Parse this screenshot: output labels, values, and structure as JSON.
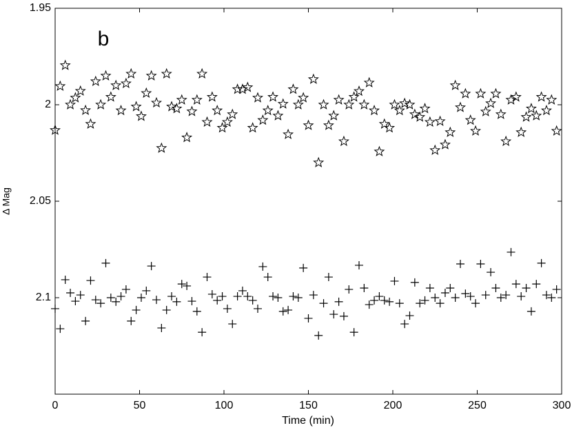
{
  "chart_data": {
    "type": "scatter",
    "annotation": "b",
    "xlabel": "Time (min)",
    "ylabel": "Δ Mag",
    "xlim": [
      0,
      300
    ],
    "xticks": [
      0,
      50,
      100,
      150,
      200,
      250,
      300
    ],
    "ylim": [
      1.95,
      2.15
    ],
    "yticks": [
      1.95,
      2,
      2.05,
      2.1
    ],
    "yinverted": true,
    "x": [
      0,
      3,
      6,
      9,
      12,
      15,
      18,
      21,
      24,
      27,
      30,
      33,
      36,
      39,
      42,
      45,
      48,
      51,
      54,
      57,
      60,
      63,
      66,
      69,
      72,
      75,
      78,
      81,
      84,
      87,
      90,
      93,
      96,
      99,
      102,
      105,
      108,
      111,
      114,
      117,
      120,
      123,
      126,
      129,
      132,
      135,
      138,
      141,
      144,
      147,
      150,
      153,
      156,
      159,
      162,
      165,
      168,
      171,
      174,
      177,
      180,
      183,
      186,
      189,
      192,
      195,
      198,
      201,
      204,
      207,
      210,
      213,
      216,
      219,
      222,
      225,
      228,
      231,
      234,
      237,
      240,
      243,
      246,
      249,
      252,
      255,
      258,
      261,
      264,
      267,
      270,
      273,
      276,
      279,
      282,
      285,
      288,
      291,
      294,
      297
    ],
    "series": [
      {
        "marker": "star",
        "color": "#000000",
        "values": [
          2.0132,
          1.9904,
          1.9796,
          2.0,
          1.9964,
          1.9929,
          2.0029,
          2.01,
          1.9879,
          2.0,
          1.985,
          1.996,
          1.99,
          2.003,
          1.989,
          1.984,
          2.001,
          2.006,
          1.994,
          1.985,
          1.999,
          2.0225,
          1.984,
          2.001,
          2.002,
          1.9975,
          2.017,
          2.0035,
          1.9975,
          1.984,
          2.009,
          1.996,
          2.003,
          2.012,
          2.009,
          2.005,
          1.992,
          1.992,
          1.991,
          2.012,
          1.9964,
          2.008,
          2.003,
          1.996,
          2.0057,
          1.9996,
          2.0154,
          1.992,
          2.0,
          1.9964,
          2.0107,
          1.9868,
          2.03,
          2.0,
          2.0107,
          2.0057,
          1.9975,
          2.019,
          2.0,
          1.996,
          1.993,
          2.0,
          1.9886,
          2.003,
          2.0243,
          2.01,
          2.012,
          2.0,
          2.003,
          1.9993,
          2.0,
          2.005,
          2.0064,
          2.002,
          2.009,
          2.0236,
          2.0086,
          2.0207,
          2.0143,
          1.99,
          2.0014,
          1.9943,
          2.008,
          2.0136,
          1.9943,
          2.0036,
          1.9993,
          1.9943,
          2.005,
          2.019,
          1.9975,
          1.996,
          2.0143,
          2.0064,
          2.002,
          2.0057,
          1.996,
          2.003,
          1.9975,
          2.0136
        ]
      },
      {
        "marker": "plus",
        "color": "#000000",
        "values": [
          2.1057,
          2.1161,
          2.0907,
          2.0975,
          2.1018,
          2.0986,
          2.1121,
          2.0911,
          2.1011,
          2.1029,
          2.0821,
          2.1,
          2.1021,
          2.0993,
          2.0957,
          2.1121,
          2.1064,
          2.1,
          2.0964,
          2.0836,
          2.1011,
          2.1157,
          2.1064,
          2.0993,
          2.1021,
          2.0929,
          2.0939,
          2.1018,
          2.1071,
          2.1179,
          2.0893,
          2.0982,
          2.1014,
          2.0993,
          2.1057,
          2.1136,
          2.0993,
          2.0964,
          2.0993,
          2.1014,
          2.1057,
          2.0839,
          2.0893,
          2.0993,
          2.1,
          2.1071,
          2.1064,
          2.0993,
          2.1,
          2.0846,
          2.1107,
          2.0986,
          2.1196,
          2.1029,
          2.0893,
          2.1086,
          2.1021,
          2.1096,
          2.0957,
          2.1179,
          2.0832,
          2.095,
          2.1036,
          2.1014,
          2.0993,
          2.1014,
          2.1021,
          2.0914,
          2.1029,
          2.1136,
          2.1093,
          2.0921,
          2.1029,
          2.1014,
          2.095,
          2.1,
          2.1029,
          2.0975,
          2.095,
          2.1,
          2.0825,
          2.0979,
          2.0993,
          2.1029,
          2.0825,
          2.0986,
          2.0868,
          2.095,
          2.1,
          2.0986,
          2.0764,
          2.0929,
          2.0993,
          2.095,
          2.1071,
          2.0929,
          2.0821,
          2.0986,
          2.1,
          2.0957
        ]
      }
    ]
  }
}
